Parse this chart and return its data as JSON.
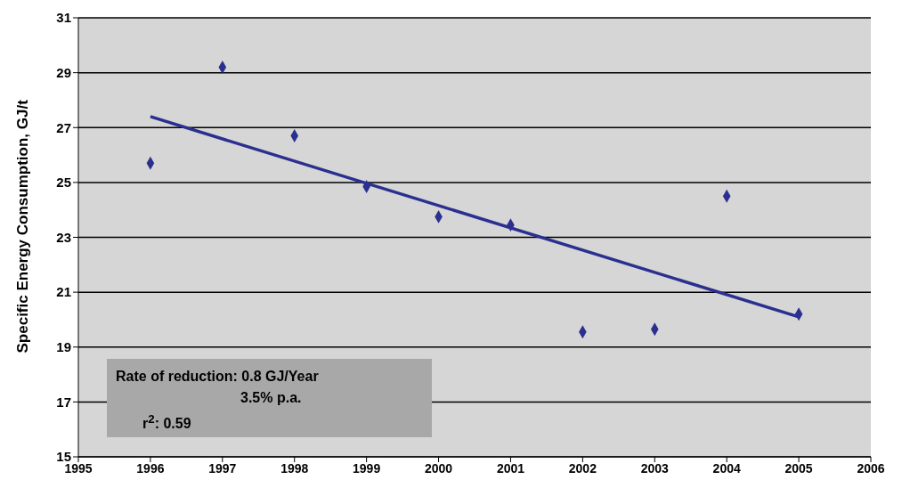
{
  "chart_data": {
    "type": "scatter",
    "ylabel": "Specific Energy Consumption, GJ/t",
    "x": [
      1996,
      1997,
      1998,
      1999,
      2000,
      2001,
      2002,
      2003,
      2004,
      2005
    ],
    "series": [
      {
        "color": "#2b2f8f",
        "values": [
          25.7,
          29.2,
          26.7,
          24.85,
          23.75,
          23.45,
          19.55,
          19.65,
          24.5,
          20.2
        ]
      },
      {
        "type": "line",
        "marker": "none",
        "color": "#2b2f8f",
        "x": [
          1996,
          2005
        ],
        "values": [
          27.4,
          20.1
        ]
      }
    ],
    "xlim": [
      1995,
      2006
    ],
    "xticks": [
      1995,
      1996,
      1997,
      1998,
      1999,
      2000,
      2001,
      2002,
      2003,
      2004,
      2005,
      2006
    ],
    "ylim": [
      15,
      31
    ],
    "yticks": [
      15,
      17,
      19,
      21,
      23,
      25,
      27,
      29,
      31
    ],
    "grid": "y",
    "marker": "diamond",
    "line_style": "solid",
    "annotations": [
      "Rate of reduction: 0.8 GJ/Year",
      "3.5% p.a.",
      "r$^{2}$: 0.59"
    ]
  }
}
